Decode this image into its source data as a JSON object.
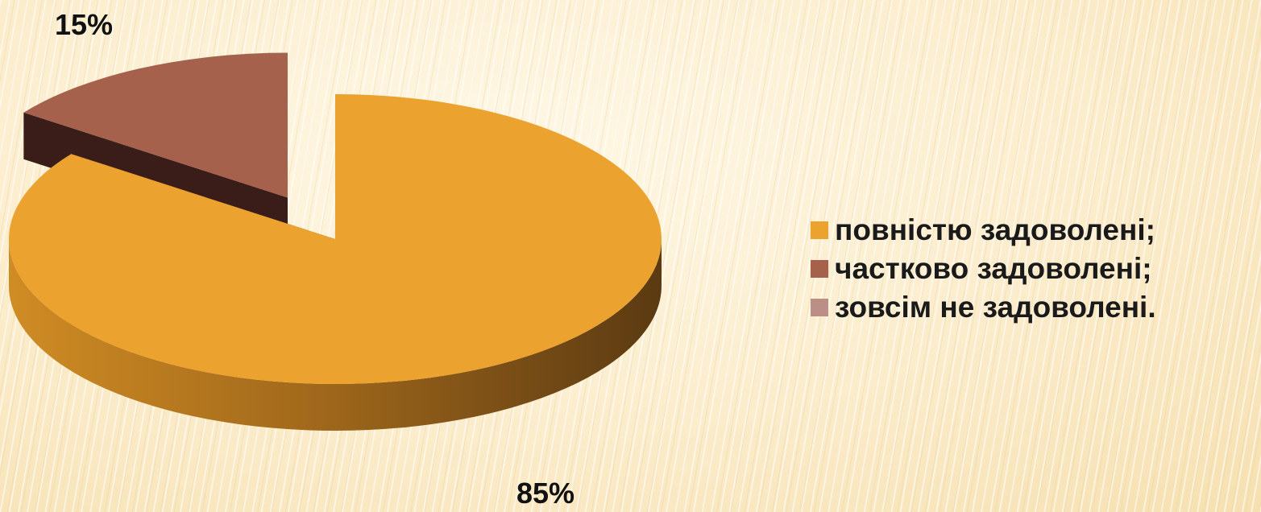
{
  "chart_data": {
    "type": "pie",
    "three_d": true,
    "exploded": true,
    "slices": [
      {
        "label": "повністю задоволені;",
        "value": 85,
        "display": "85%",
        "color": "#eca22e",
        "side_color": "#b9781d",
        "side_dark": "#5b3a12"
      },
      {
        "label": "частково задоволені;",
        "value": 15,
        "display": "15%",
        "color": "#a5614c",
        "side_color": "#4b2620",
        "side_dark": "#3a1d18"
      },
      {
        "label": "зовсім не задоволені.",
        "value": 0,
        "display": "",
        "color": "#bc8f86",
        "side_color": "#7a5a55",
        "side_dark": "#5a403c"
      }
    ],
    "legend_position": "right",
    "title": ""
  }
}
